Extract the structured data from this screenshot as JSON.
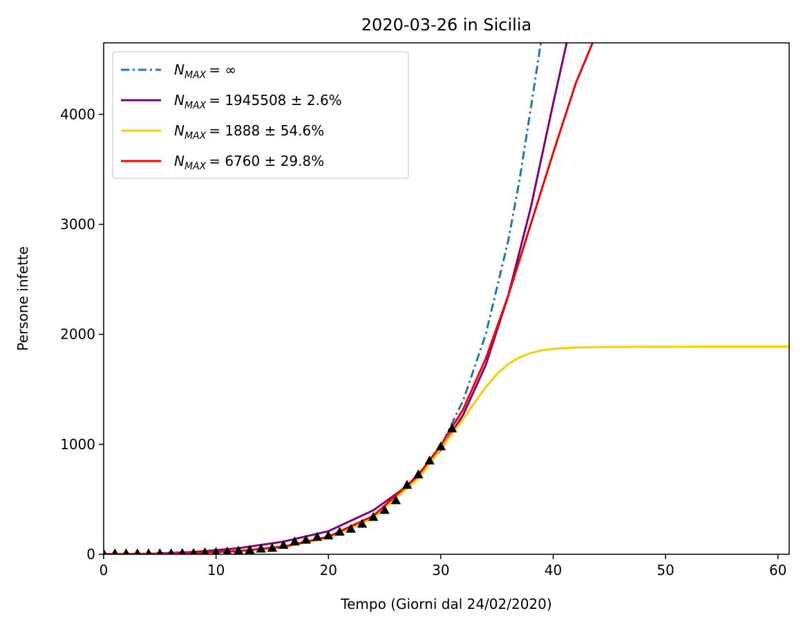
{
  "chart_data": {
    "type": "line",
    "title": "2020-03-26 in Sicilia",
    "xlabel": "Tempo (Giorni dal 24/02/2020)",
    "ylabel": "Persone infette",
    "xlim": [
      0,
      61
    ],
    "ylim": [
      0,
      4650
    ],
    "xticks": [
      0,
      10,
      20,
      30,
      40,
      50,
      60
    ],
    "yticks": [
      0,
      1000,
      2000,
      3000,
      4000
    ],
    "grid": false,
    "legend_position": "top-left",
    "series": [
      {
        "name": "N_MAX = ∞",
        "legend_main": "N",
        "legend_sub": "MAX",
        "legend_rest": "= ∞",
        "color": "#1f77b4",
        "style": "dashdot",
        "x": [
          0,
          4,
          8,
          12,
          16,
          20,
          24,
          28,
          30,
          32,
          34,
          36,
          37,
          38,
          38.9
        ],
        "y": [
          1,
          4,
          11,
          28,
          65,
          150,
          330,
          700,
          980,
          1400,
          2000,
          2850,
          3400,
          4050,
          4650
        ]
      },
      {
        "name": "N_MAX = 1945508 ± 2.6%",
        "legend_main": "N",
        "legend_sub": "MAX",
        "legend_rest": "= 1945508 ± 2.6%",
        "color": "#800080",
        "style": "solid",
        "x": [
          0,
          4,
          8,
          12,
          16,
          20,
          24,
          27,
          30,
          32,
          34,
          36,
          38,
          40,
          41.2
        ],
        "y": [
          1,
          5,
          20,
          55,
          115,
          210,
          400,
          620,
          950,
          1270,
          1720,
          2350,
          3150,
          4100,
          4650
        ]
      },
      {
        "name": "N_MAX = 1888 ± 54.6%",
        "legend_main": "N",
        "legend_sub": "MAX",
        "legend_rest": "= 1888 ± 54.6%",
        "color": "#ffcc00",
        "style": "solid",
        "x": [
          0,
          4,
          8,
          12,
          16,
          20,
          24,
          28,
          30,
          32,
          33,
          34,
          35,
          36,
          37,
          38,
          39,
          40,
          42,
          45,
          50,
          55,
          61
        ],
        "y": [
          1,
          4,
          11,
          28,
          65,
          150,
          330,
          690,
          960,
          1230,
          1380,
          1520,
          1640,
          1730,
          1790,
          1830,
          1855,
          1868,
          1880,
          1885,
          1887,
          1888,
          1888
        ]
      },
      {
        "name": "N_MAX = 6760 ± 29.8%",
        "legend_main": "N",
        "legend_sub": "MAX",
        "legend_rest": "= 6760 ± 29.8%",
        "color": "#ff0000",
        "style": "solid",
        "x": [
          0,
          4,
          8,
          12,
          16,
          20,
          24,
          28,
          30,
          32,
          34,
          36,
          38,
          40,
          42,
          43.5
        ],
        "y": [
          1,
          4,
          12,
          30,
          70,
          160,
          350,
          720,
          990,
          1320,
          1780,
          2350,
          3000,
          3650,
          4280,
          4650
        ]
      }
    ],
    "observed": {
      "color": "#000000",
      "marker": "triangle",
      "x": [
        0,
        1,
        2,
        3,
        4,
        5,
        6,
        7,
        8,
        9,
        10,
        11,
        12,
        13,
        14,
        15,
        16,
        17,
        18,
        19,
        20,
        21,
        22,
        23,
        24,
        25,
        26,
        27,
        28,
        29,
        30,
        31
      ],
      "y": [
        3,
        3,
        3,
        3,
        4,
        4,
        4,
        6,
        6,
        12,
        16,
        20,
        28,
        35,
        46,
        53,
        80,
        111,
        127,
        153,
        166,
        200,
        226,
        272,
        334,
        398,
        486,
        626,
        721,
        847,
        976,
        1139
      ]
    }
  }
}
